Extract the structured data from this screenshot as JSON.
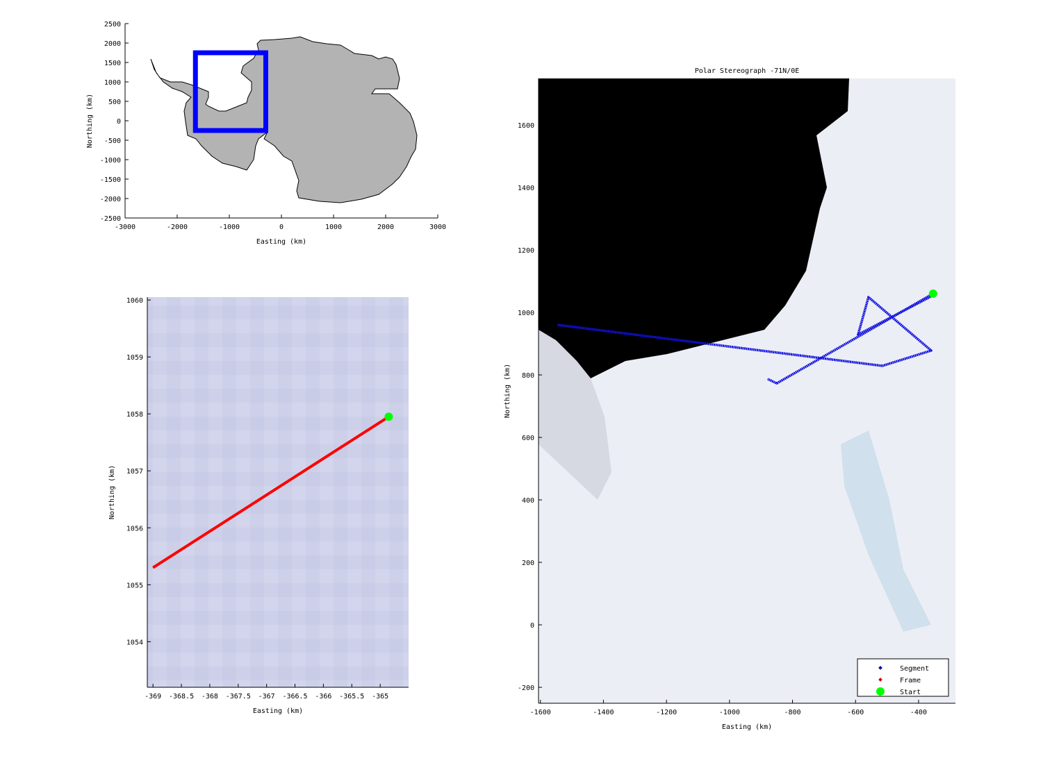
{
  "chart_data": [
    {
      "type": "map",
      "xlabel": "Easting (km)",
      "ylabel": "Northing (km)",
      "xlim": [
        -3000,
        3000
      ],
      "ylim": [
        -2500,
        2500
      ],
      "xticks": [
        -3000,
        -2000,
        -1000,
        0,
        1000,
        2000,
        3000
      ],
      "yticks": [
        2500,
        2000,
        1500,
        1000,
        500,
        0,
        -500,
        -1000,
        -1500,
        -2000,
        -2500
      ],
      "land_color": "#b3b3b3",
      "region_box": {
        "x": [
          -1650,
          -300
        ],
        "y": [
          -250,
          1750
        ],
        "color": "#0000ff"
      }
    },
    {
      "type": "line",
      "xlabel": "Easting (km)",
      "ylabel": "Northing (km)",
      "xlim": [
        -369.1,
        -364.5
      ],
      "ylim": [
        1053.2,
        1060.05
      ],
      "xticks": [
        "-369",
        "-368.5",
        "-368",
        "-367.5",
        "-367",
        "-366.5",
        "-366",
        "-365.5",
        "-365"
      ],
      "yticks": [
        "1060",
        "1059",
        "1058",
        "1057",
        "1056",
        "1055",
        "1054"
      ],
      "background_color": "#cdd0e8",
      "series": [
        {
          "role": "Frame",
          "color": "#ff0000",
          "x": [
            -369.0,
            -364.85
          ],
          "y": [
            1055.3,
            1057.95
          ]
        },
        {
          "role": "Start",
          "color": "#00ff00",
          "x": [
            -364.85
          ],
          "y": [
            1057.95
          ]
        }
      ]
    },
    {
      "type": "map",
      "title": "Polar Stereograph -71N/0E",
      "xlabel": "Easting (km)",
      "ylabel": "Northing (km)",
      "xlim": [
        -1606,
        -283
      ],
      "ylim": [
        -251,
        1749
      ],
      "xticks": [
        -1600,
        -1400,
        -1200,
        -1000,
        -800,
        -600,
        -400
      ],
      "yticks": [
        1600,
        1400,
        1200,
        1000,
        800,
        600,
        400,
        200,
        0,
        -200
      ],
      "legend": {
        "position": "bottom-right",
        "entries": [
          {
            "label": "Segment",
            "color": "#0000aa"
          },
          {
            "label": "Frame",
            "color": "#cc0000"
          },
          {
            "label": "Start",
            "color": "#00ff00"
          }
        ]
      },
      "series": [
        {
          "name": "Segment",
          "color": "#1010e0",
          "paths": [
            {
              "x": [
                -1545,
                -515,
                -360,
                -559,
                -592,
                -365,
                -354
              ],
              "y": [
                960,
                829,
                878,
                1049,
                929,
                1049,
                1060
              ]
            },
            {
              "x": [
                -354,
                -850,
                -879
              ],
              "y": [
                1060,
                773,
                787
              ]
            }
          ]
        },
        {
          "name": "Start",
          "color": "#00ff00",
          "x": [
            -354
          ],
          "y": [
            1060
          ]
        }
      ]
    }
  ]
}
